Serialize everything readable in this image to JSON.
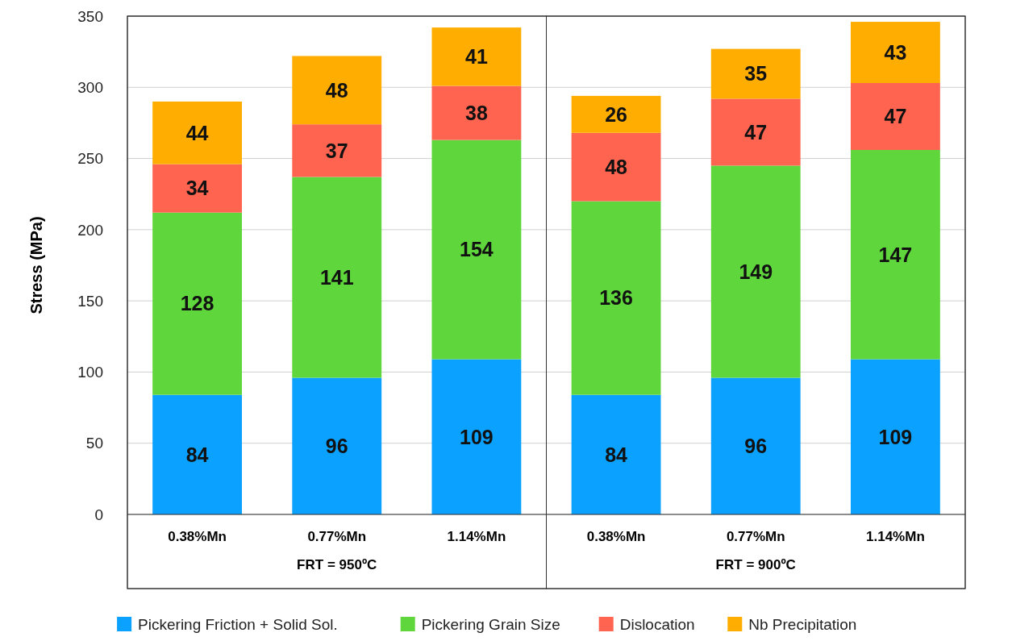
{
  "chart_data": {
    "type": "bar",
    "stacked": true,
    "ylabel": "Stress  (MPa)",
    "categories": [
      "0.38%Mn",
      "0.77%Mn",
      "1.14%Mn",
      "0.38%Mn",
      "0.77%Mn",
      "1.14%Mn"
    ],
    "series": [
      {
        "name": "Pickering Friction + Solid Sol.",
        "color": "#0aa1ff",
        "values": [
          84,
          96,
          109,
          84,
          96,
          109
        ]
      },
      {
        "name": "Pickering Grain Size",
        "color": "#5fd63b",
        "values": [
          128,
          141,
          154,
          136,
          149,
          147
        ]
      },
      {
        "name": "Dislocation",
        "color": "#fe6450",
        "values": [
          34,
          37,
          38,
          48,
          47,
          47
        ]
      },
      {
        "name": "Nb Precipitation",
        "color": "#ffad00",
        "values": [
          44,
          48,
          41,
          26,
          35,
          43
        ]
      }
    ],
    "ylim": [
      0,
      350
    ],
    "yticks": [
      0,
      50,
      100,
      150,
      200,
      250,
      300,
      350
    ],
    "grid": "y",
    "legend": "bottom",
    "data_labels": true,
    "annotations": [
      "FRT = 950ºC",
      "FRT = 900ºC"
    ]
  }
}
